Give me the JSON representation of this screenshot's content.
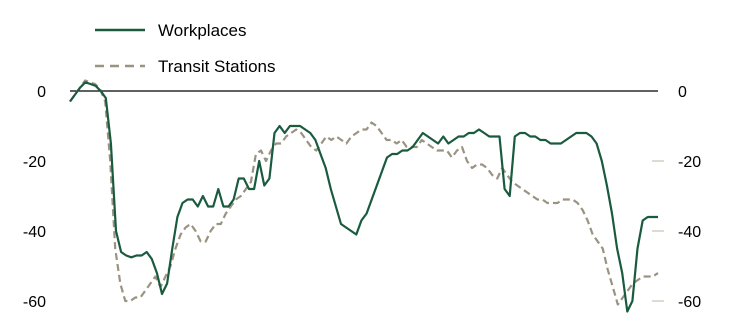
{
  "chart_data": {
    "type": "line",
    "title": "",
    "xlabel": "",
    "ylabel": "",
    "ylim": [
      -60,
      0
    ],
    "y_ticks": [
      0,
      -20,
      -40,
      -60
    ],
    "y_tick_labels": [
      "0",
      "-20",
      "-40",
      "-60"
    ],
    "zero_line": true,
    "grid": false,
    "legend_position": "top-left",
    "series": [
      {
        "name": "Workplaces",
        "color": "#1a5b3f",
        "style": "solid",
        "values": [
          -3,
          -1,
          1,
          2.5,
          2,
          1.5,
          0,
          -2,
          -15,
          -40,
          -46,
          -47,
          -47.5,
          -47,
          -47,
          -46,
          -48,
          -52,
          -58,
          -55,
          -45,
          -36,
          -32,
          -31,
          -31,
          -33,
          -30,
          -33,
          -33,
          -28,
          -33,
          -33,
          -31,
          -25,
          -25,
          -28,
          -28,
          -20,
          -27,
          -25,
          -12,
          -10,
          -12,
          -10,
          -10,
          -10,
          -11,
          -12,
          -14,
          -18,
          -22,
          -28,
          -33,
          -38,
          -39,
          -40,
          -41,
          -37,
          -35,
          -31,
          -27,
          -23,
          -19,
          -18,
          -18,
          -17,
          -17,
          -16,
          -14,
          -12,
          -13,
          -14,
          -15,
          -13,
          -15,
          -14,
          -13,
          -13,
          -12,
          -12,
          -11,
          -12,
          -13,
          -13,
          -13,
          -28,
          -30,
          -13,
          -12,
          -12,
          -13,
          -13,
          -14,
          -14,
          -15,
          -15,
          -15,
          -14,
          -13,
          -12,
          -12,
          -12,
          -13,
          -15,
          -20,
          -27,
          -35,
          -45,
          -52,
          -63,
          -60,
          -45,
          -37,
          -36,
          -36,
          -36
        ]
      },
      {
        "name": "Transit Stations",
        "color": "#9b9381",
        "style": "dashed",
        "values": [
          -3,
          -1,
          1,
          3,
          2.5,
          2,
          0.5,
          -3,
          -20,
          -45,
          -55,
          -60,
          -60,
          -59,
          -59,
          -57,
          -55,
          -53,
          -56,
          -53,
          -50,
          -45,
          -41,
          -39,
          -38,
          -40,
          -43,
          -43,
          -40,
          -38,
          -38,
          -35,
          -33,
          -31,
          -30,
          -28,
          -26,
          -18,
          -17,
          -20,
          -17,
          -15,
          -15,
          -13,
          -12,
          -11,
          -12,
          -14,
          -16,
          -17,
          -15,
          -13,
          -14,
          -13,
          -14,
          -15,
          -13,
          -12,
          -11,
          -11,
          -9,
          -10,
          -12,
          -14,
          -14,
          -15,
          -14,
          -16,
          -16,
          -16,
          -14,
          -15,
          -16,
          -17,
          -17,
          -17,
          -19,
          -17,
          -16,
          -20,
          -22,
          -21,
          -21,
          -22,
          -24,
          -25,
          -22,
          -24,
          -26,
          -27,
          -28,
          -29,
          -30,
          -31,
          -31,
          -32,
          -32,
          -32,
          -31,
          -31,
          -31,
          -32,
          -34,
          -37,
          -41,
          -43,
          -45,
          -51,
          -56,
          -61,
          -59,
          -57,
          -55,
          -54,
          -53,
          -53,
          -53,
          -52
        ]
      }
    ]
  }
}
